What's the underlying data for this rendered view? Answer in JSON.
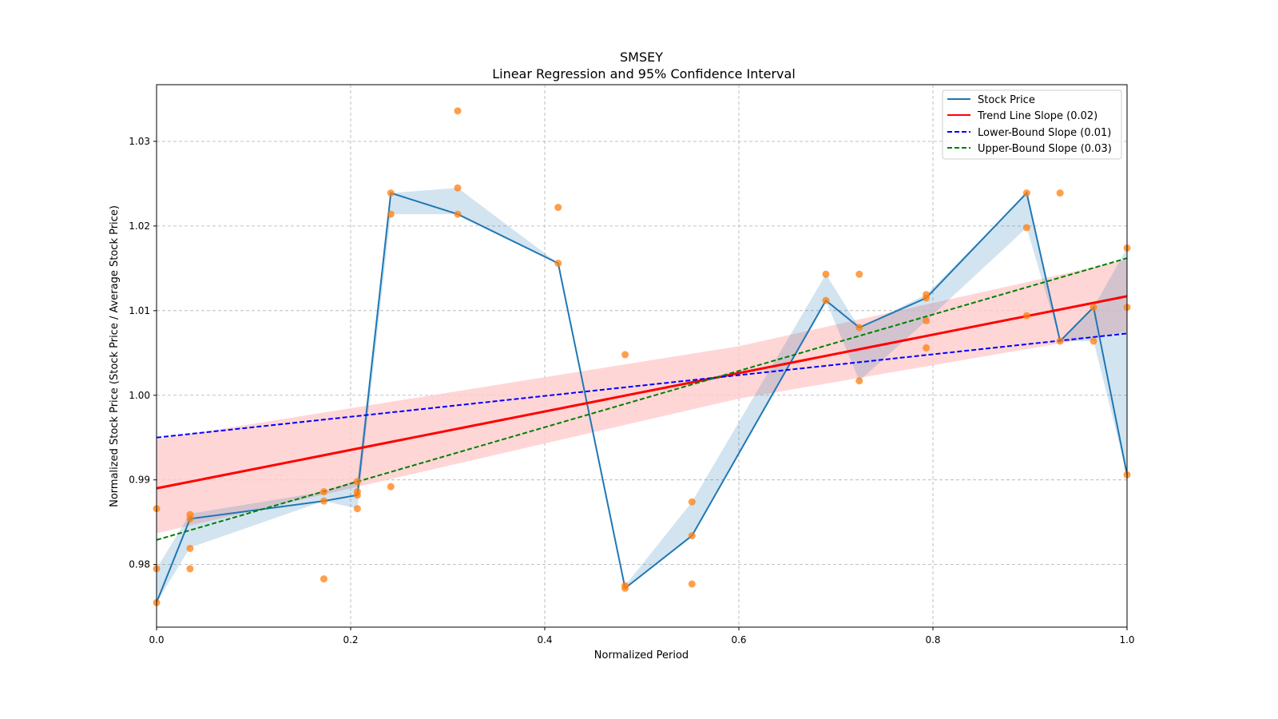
{
  "chart_data": {
    "type": "line",
    "title": "SMSEY",
    "subtitle": "Linear Regression and 95% Confidence Interval",
    "xlabel": "Normalized Period",
    "ylabel": "Normalized Stock Price (Stock Price / Average Stock Price)",
    "xlim": [
      0,
      1
    ],
    "ylim": [
      0.9726,
      1.0367
    ],
    "xticks": [
      "0.0",
      "0.2",
      "0.4",
      "0.6",
      "0.8",
      "1.0"
    ],
    "yticks": [
      "0.98",
      "0.99",
      "1.00",
      "1.01",
      "1.02",
      "1.03"
    ],
    "grid": true,
    "legend_position": "top-right",
    "colors": {
      "stock": "#1f77b4",
      "band": "#1f77b4",
      "scatter": "#ff7f0e",
      "trend": "#ff0000",
      "trend_ci": "#ffcccc",
      "lower": "#0000ff",
      "upper": "#008000"
    },
    "stock_price": {
      "name": "Stock Price",
      "x": [
        0,
        0.0345,
        0.1724,
        0.2069,
        0.2414,
        0.3103,
        0.4138,
        0.4828,
        0.5517,
        0.6897,
        0.7241,
        0.7931,
        0.8966,
        0.931,
        0.9655,
        1.0
      ],
      "y": [
        0.9755,
        0.9854,
        0.9875,
        0.9882,
        1.0239,
        1.0214,
        1.0156,
        0.9772,
        0.9834,
        1.0112,
        1.008,
        1.0115,
        1.0239,
        1.0064,
        1.0104,
        0.9906
      ],
      "band_upper": [
        0.9795,
        0.986,
        0.9886,
        0.99,
        1.0239,
        1.0245,
        1.0156,
        0.9775,
        0.9874,
        1.0143,
        1.008,
        1.0119,
        1.0239,
        1.0064,
        1.0104,
        1.0174
      ],
      "band_lower": [
        0.9755,
        0.982,
        0.9875,
        0.9866,
        1.0214,
        1.0214,
        1.0155,
        0.9772,
        0.9834,
        1.0112,
        1.0017,
        1.0088,
        1.0198,
        1.0064,
        1.0064,
        0.9906
      ]
    },
    "scatter": [
      [
        0,
        0.9866
      ],
      [
        0,
        0.9795
      ],
      [
        0,
        0.9755
      ],
      [
        0.0345,
        0.9859
      ],
      [
        0.0345,
        0.9854
      ],
      [
        0.0345,
        0.9819
      ],
      [
        0.0345,
        0.9795
      ],
      [
        0.1724,
        0.9886
      ],
      [
        0.1724,
        0.9875
      ],
      [
        0.1724,
        0.9783
      ],
      [
        0.2069,
        0.9898
      ],
      [
        0.2069,
        0.9886
      ],
      [
        0.2069,
        0.9882
      ],
      [
        0.2069,
        0.9866
      ],
      [
        0.2414,
        1.0239
      ],
      [
        0.2414,
        1.0214
      ],
      [
        0.2414,
        0.9892
      ],
      [
        0.3103,
        1.0336
      ],
      [
        0.3103,
        1.0245
      ],
      [
        0.3103,
        1.0214
      ],
      [
        0.4138,
        1.0222
      ],
      [
        0.4138,
        1.0156
      ],
      [
        0.4828,
        1.0048
      ],
      [
        0.4828,
        0.9775
      ],
      [
        0.4828,
        0.9772
      ],
      [
        0.5517,
        0.9874
      ],
      [
        0.5517,
        0.9834
      ],
      [
        0.5517,
        0.9777
      ],
      [
        0.6897,
        1.0143
      ],
      [
        0.6897,
        1.0112
      ],
      [
        0.7241,
        1.0143
      ],
      [
        0.7241,
        1.008
      ],
      [
        0.7241,
        1.0017
      ],
      [
        0.7931,
        1.0119
      ],
      [
        0.7931,
        1.0115
      ],
      [
        0.7931,
        1.0088
      ],
      [
        0.7931,
        1.0056
      ],
      [
        0.8966,
        1.0239
      ],
      [
        0.8966,
        1.0198
      ],
      [
        0.8966,
        1.0094
      ],
      [
        0.931,
        1.0239
      ],
      [
        0.931,
        1.0064
      ],
      [
        0.9655,
        1.0104
      ],
      [
        0.9655,
        1.0064
      ],
      [
        1.0,
        1.0174
      ],
      [
        1.0,
        1.0104
      ],
      [
        1.0,
        0.9906
      ]
    ],
    "trend": {
      "name": "Trend Line Slope (0.02)",
      "x": [
        0,
        1
      ],
      "y": [
        0.989,
        1.0117
      ],
      "ci_x": [
        0,
        0.6,
        1
      ],
      "ci_upper": [
        0.9948,
        1.0058,
        1.016
      ],
      "ci_lower": [
        0.9837,
        0.9996,
        1.0075
      ]
    },
    "lower_bound": {
      "name": "Lower-Bound Slope (0.01)",
      "x": [
        0,
        1
      ],
      "y": [
        0.995,
        1.0073
      ]
    },
    "upper_bound": {
      "name": "Upper-Bound Slope (0.03)",
      "x": [
        0,
        1
      ],
      "y": [
        0.9829,
        1.0162
      ]
    }
  }
}
